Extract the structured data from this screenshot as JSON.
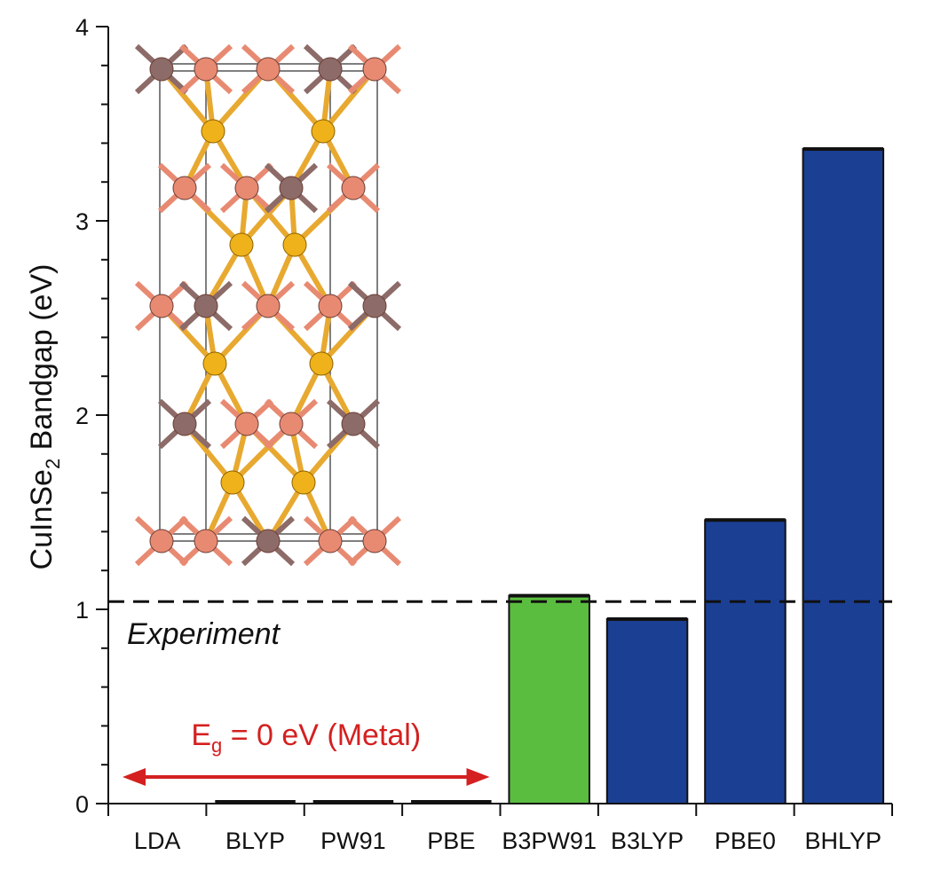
{
  "chart_data": {
    "type": "bar",
    "categories": [
      "LDA",
      "BLYP",
      "PW91",
      "PBE",
      "B3PW91",
      "B3LYP",
      "PBE0",
      "BHLYP"
    ],
    "values": [
      0,
      0,
      0,
      0,
      1.07,
      0.95,
      1.46,
      3.37
    ],
    "bar_colors": [
      "#1b3f93",
      "#1b3f93",
      "#1b3f93",
      "#1b3f93",
      "#5bbd3f",
      "#1b3f93",
      "#1b3f93",
      "#1b3f93"
    ],
    "ylabel": "CuInSe",
    "ylabel_subscript": "2",
    "ylabel_rest": " Bandgap (eV)",
    "ylim": [
      0,
      4
    ],
    "yticks": [
      "0",
      "1",
      "2",
      "3",
      "4"
    ],
    "experiment_value": 1.04,
    "experiment_label": "Experiment",
    "metal_annotation": {
      "prefix": "E",
      "subscript": "g",
      "text": " = 0 eV (Metal)",
      "color": "#d42020",
      "span": [
        "LDA",
        "PBE"
      ]
    },
    "grid": false
  },
  "colors": {
    "axis": "#111111",
    "cu_atom": "#e88a72",
    "in_atom": "#8c6b68",
    "se_atom": "#f0b21a",
    "bond_se": "#e8a930"
  }
}
